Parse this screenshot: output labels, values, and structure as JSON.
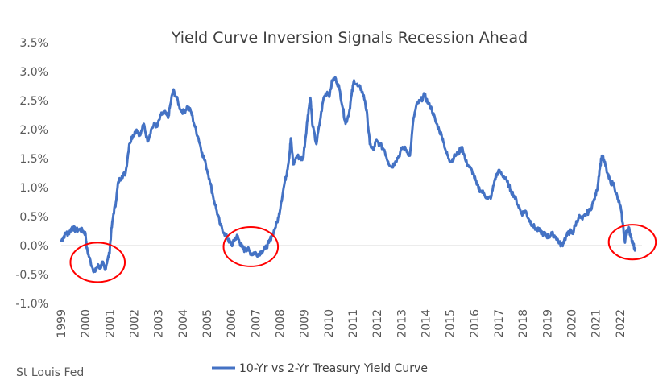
{
  "chart_data": {
    "type": "line",
    "title": "Yield Curve Inversion Signals Recession Ahead",
    "source": "St Louis Fed",
    "legend_position": "bottom",
    "grid": false,
    "xlim": [
      1999,
      2022.9
    ],
    "ylim": [
      -1.0,
      3.5
    ],
    "x_ticks": [
      "1999",
      "2000",
      "2001",
      "2002",
      "2003",
      "2004",
      "2005",
      "2006",
      "2007",
      "2008",
      "2009",
      "2010",
      "2011",
      "2012",
      "2013",
      "2014",
      "2015",
      "2016",
      "2017",
      "2018",
      "2019",
      "2020",
      "2021",
      "2022"
    ],
    "y_ticks": [
      "3.5%",
      "3.0%",
      "2.5%",
      "2.0%",
      "1.5%",
      "1.0%",
      "0.5%",
      "0.0%",
      "-0.5%",
      "-1.0%"
    ],
    "series": [
      {
        "name": "10-Yr vs 2-Yr Treasury Yield Curve",
        "color": "#4472C4",
        "points": [
          [
            1999.0,
            0.08
          ],
          [
            1999.1,
            0.15
          ],
          [
            1999.2,
            0.22
          ],
          [
            1999.3,
            0.2
          ],
          [
            1999.45,
            0.32
          ],
          [
            1999.6,
            0.26
          ],
          [
            1999.75,
            0.28
          ],
          [
            1999.9,
            0.25
          ],
          [
            2000.0,
            0.2
          ],
          [
            2000.05,
            -0.05
          ],
          [
            2000.15,
            -0.2
          ],
          [
            2000.3,
            -0.4
          ],
          [
            2000.4,
            -0.45
          ],
          [
            2000.5,
            -0.35
          ],
          [
            2000.6,
            -0.38
          ],
          [
            2000.7,
            -0.3
          ],
          [
            2000.8,
            -0.42
          ],
          [
            2000.9,
            -0.25
          ],
          [
            2000.98,
            -0.15
          ],
          [
            2001.05,
            0.2
          ],
          [
            2001.15,
            0.55
          ],
          [
            2001.25,
            0.75
          ],
          [
            2001.35,
            1.1
          ],
          [
            2001.5,
            1.2
          ],
          [
            2001.65,
            1.25
          ],
          [
            2001.8,
            1.75
          ],
          [
            2001.95,
            1.9
          ],
          [
            2002.1,
            2.0
          ],
          [
            2002.25,
            1.9
          ],
          [
            2002.4,
            2.1
          ],
          [
            2002.55,
            1.8
          ],
          [
            2002.7,
            2.0
          ],
          [
            2002.85,
            2.1
          ],
          [
            2002.95,
            2.05
          ],
          [
            2003.1,
            2.25
          ],
          [
            2003.25,
            2.3
          ],
          [
            2003.4,
            2.2
          ],
          [
            2003.5,
            2.45
          ],
          [
            2003.6,
            2.68
          ],
          [
            2003.75,
            2.55
          ],
          [
            2003.9,
            2.35
          ],
          [
            2004.05,
            2.3
          ],
          [
            2004.2,
            2.4
          ],
          [
            2004.35,
            2.3
          ],
          [
            2004.5,
            2.05
          ],
          [
            2004.65,
            1.85
          ],
          [
            2004.8,
            1.6
          ],
          [
            2004.95,
            1.4
          ],
          [
            2005.1,
            1.15
          ],
          [
            2005.25,
            0.85
          ],
          [
            2005.4,
            0.6
          ],
          [
            2005.55,
            0.35
          ],
          [
            2005.7,
            0.22
          ],
          [
            2005.85,
            0.12
          ],
          [
            2005.95,
            0.05
          ],
          [
            2006.05,
            0.02
          ],
          [
            2006.15,
            0.12
          ],
          [
            2006.25,
            0.16
          ],
          [
            2006.35,
            0.05
          ],
          [
            2006.45,
            -0.03
          ],
          [
            2006.55,
            -0.08
          ],
          [
            2006.65,
            -0.05
          ],
          [
            2006.75,
            -0.1
          ],
          [
            2006.85,
            -0.15
          ],
          [
            2006.95,
            -0.12
          ],
          [
            2007.1,
            -0.15
          ],
          [
            2007.25,
            -0.1
          ],
          [
            2007.4,
            -0.05
          ],
          [
            2007.55,
            0.05
          ],
          [
            2007.65,
            0.15
          ],
          [
            2007.8,
            0.3
          ],
          [
            2007.95,
            0.5
          ],
          [
            2008.05,
            0.75
          ],
          [
            2008.2,
            1.1
          ],
          [
            2008.3,
            1.3
          ],
          [
            2008.4,
            1.6
          ],
          [
            2008.45,
            1.85
          ],
          [
            2008.55,
            1.4
          ],
          [
            2008.7,
            1.55
          ],
          [
            2008.85,
            1.5
          ],
          [
            2008.95,
            1.5
          ],
          [
            2009.05,
            1.85
          ],
          [
            2009.15,
            2.25
          ],
          [
            2009.25,
            2.55
          ],
          [
            2009.35,
            2.05
          ],
          [
            2009.5,
            1.75
          ],
          [
            2009.65,
            2.15
          ],
          [
            2009.8,
            2.55
          ],
          [
            2009.95,
            2.65
          ],
          [
            2010.05,
            2.6
          ],
          [
            2010.15,
            2.85
          ],
          [
            2010.3,
            2.88
          ],
          [
            2010.45,
            2.7
          ],
          [
            2010.6,
            2.35
          ],
          [
            2010.7,
            2.1
          ],
          [
            2010.85,
            2.3
          ],
          [
            2010.95,
            2.6
          ],
          [
            2011.05,
            2.85
          ],
          [
            2011.2,
            2.75
          ],
          [
            2011.35,
            2.7
          ],
          [
            2011.5,
            2.5
          ],
          [
            2011.6,
            2.2
          ],
          [
            2011.7,
            1.75
          ],
          [
            2011.85,
            1.65
          ],
          [
            2011.95,
            1.8
          ],
          [
            2012.1,
            1.75
          ],
          [
            2012.3,
            1.65
          ],
          [
            2012.45,
            1.45
          ],
          [
            2012.6,
            1.35
          ],
          [
            2012.75,
            1.45
          ],
          [
            2012.9,
            1.55
          ],
          [
            2013.05,
            1.7
          ],
          [
            2013.2,
            1.65
          ],
          [
            2013.35,
            1.55
          ],
          [
            2013.5,
            2.2
          ],
          [
            2013.65,
            2.45
          ],
          [
            2013.8,
            2.5
          ],
          [
            2013.95,
            2.6
          ],
          [
            2014.1,
            2.45
          ],
          [
            2014.25,
            2.35
          ],
          [
            2014.4,
            2.15
          ],
          [
            2014.55,
            2.0
          ],
          [
            2014.7,
            1.85
          ],
          [
            2014.85,
            1.6
          ],
          [
            2014.95,
            1.5
          ],
          [
            2015.05,
            1.45
          ],
          [
            2015.2,
            1.55
          ],
          [
            2015.35,
            1.6
          ],
          [
            2015.5,
            1.7
          ],
          [
            2015.65,
            1.45
          ],
          [
            2015.8,
            1.35
          ],
          [
            2015.95,
            1.25
          ],
          [
            2016.1,
            1.05
          ],
          [
            2016.25,
            0.95
          ],
          [
            2016.4,
            0.9
          ],
          [
            2016.55,
            0.8
          ],
          [
            2016.7,
            0.85
          ],
          [
            2016.85,
            1.15
          ],
          [
            2016.95,
            1.25
          ],
          [
            2017.05,
            1.28
          ],
          [
            2017.2,
            1.2
          ],
          [
            2017.35,
            1.1
          ],
          [
            2017.5,
            0.95
          ],
          [
            2017.65,
            0.85
          ],
          [
            2017.8,
            0.7
          ],
          [
            2017.95,
            0.55
          ],
          [
            2018.1,
            0.6
          ],
          [
            2018.25,
            0.45
          ],
          [
            2018.4,
            0.35
          ],
          [
            2018.55,
            0.28
          ],
          [
            2018.7,
            0.25
          ],
          [
            2018.85,
            0.2
          ],
          [
            2018.95,
            0.18
          ],
          [
            2019.05,
            0.15
          ],
          [
            2019.2,
            0.2
          ],
          [
            2019.35,
            0.15
          ],
          [
            2019.5,
            0.05
          ],
          [
            2019.6,
            0.0
          ],
          [
            2019.7,
            0.1
          ],
          [
            2019.85,
            0.2
          ],
          [
            2019.95,
            0.25
          ],
          [
            2020.05,
            0.2
          ],
          [
            2020.15,
            0.35
          ],
          [
            2020.3,
            0.5
          ],
          [
            2020.45,
            0.45
          ],
          [
            2020.6,
            0.55
          ],
          [
            2020.75,
            0.6
          ],
          [
            2020.9,
            0.75
          ],
          [
            2021.05,
            0.95
          ],
          [
            2021.15,
            1.3
          ],
          [
            2021.25,
            1.55
          ],
          [
            2021.35,
            1.45
          ],
          [
            2021.5,
            1.2
          ],
          [
            2021.6,
            1.1
          ],
          [
            2021.75,
            1.05
          ],
          [
            2021.9,
            0.8
          ],
          [
            2022.0,
            0.7
          ],
          [
            2022.1,
            0.4
          ],
          [
            2022.2,
            0.05
          ],
          [
            2022.25,
            0.25
          ],
          [
            2022.35,
            0.3
          ],
          [
            2022.45,
            0.15
          ],
          [
            2022.55,
            0.0
          ],
          [
            2022.62,
            -0.05
          ]
        ]
      }
    ],
    "annotations": [
      {
        "type": "circle",
        "color": "#FF0000",
        "cx": 2000.5,
        "cy": -0.29,
        "rx": 1.12,
        "ry": 0.34
      },
      {
        "type": "circle",
        "color": "#FF0000",
        "cx": 2006.8,
        "cy": -0.02,
        "rx": 1.12,
        "ry": 0.34
      },
      {
        "type": "circle",
        "color": "#FF0000",
        "cx": 2022.5,
        "cy": 0.06,
        "rx": 0.97,
        "ry": 0.3
      }
    ],
    "axis_color": "#D9D9D9"
  }
}
